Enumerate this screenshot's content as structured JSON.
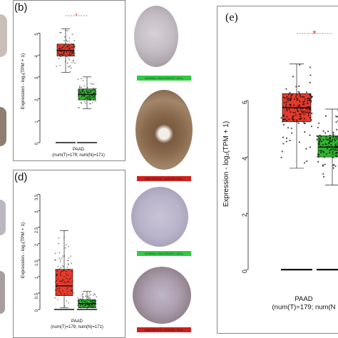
{
  "panels": {
    "b": {
      "label": "(b)"
    },
    "d": {
      "label": "(d)"
    },
    "e": {
      "label": "(e)"
    }
  },
  "tissue_labels": {
    "b_top": "NORMAL PANCREATIC CELL",
    "b_bottom": "PANCREATIC CANCER CELL",
    "d_top": "NORMAL PANCREATIC CELL",
    "d_bottom": "PANCREATIC CANCER CELL"
  },
  "colors": {
    "tumor": "#e53a2c",
    "normal": "#2fb52f",
    "normal_label_bg": "#2ecc40",
    "cancer_label_bg": "#d0201c",
    "significance": "#e8433b"
  },
  "chart_data": [
    {
      "panel": "b",
      "type": "box",
      "ylabel": "Expression - log₂(TPM + 1)",
      "xlabel": "PAAD",
      "xsublabel": "(num(T)=179; num(N)=171)",
      "significance": "*",
      "yticks": [
        0,
        1,
        2,
        3,
        4,
        5
      ],
      "ylim": [
        0,
        5.6
      ],
      "series": [
        {
          "group": "T",
          "q1": 3.95,
          "median": 4.2,
          "q3": 4.5,
          "whisker_low": 3.2,
          "whisker_high": 5.2
        },
        {
          "group": "N",
          "q1": 1.95,
          "median": 2.2,
          "q3": 2.45,
          "whisker_low": 1.55,
          "whisker_high": 3.0
        }
      ]
    },
    {
      "panel": "d",
      "type": "box",
      "ylabel": "Expression - log₂(TPM + 1)",
      "xlabel": "PAAD",
      "xsublabel": "(num(T)=179; num(N)=171)",
      "yticks": [
        0,
        0.5,
        1,
        1.5,
        2,
        2.5,
        3,
        3.5
      ],
      "ticklabels": [
        "0",
        "0.5",
        "1",
        "1.5",
        "2",
        "2.5",
        "3",
        "3.5"
      ],
      "ylim": [
        0,
        3.6
      ],
      "series": [
        {
          "group": "T",
          "q1": 0.42,
          "median": 0.72,
          "q3": 1.22,
          "whisker_low": 0.05,
          "whisker_high": 2.4
        },
        {
          "group": "N",
          "q1": 0.05,
          "median": 0.18,
          "q3": 0.3,
          "whisker_low": 0.0,
          "whisker_high": 0.55
        }
      ]
    },
    {
      "panel": "e",
      "type": "box",
      "ylabel": "Expression - log₂(TPM + 1)",
      "xlabel": "PAAD",
      "xsublabel": "(num(T)=179; num(N",
      "significance": "*",
      "yticks": [
        0,
        2,
        4,
        6
      ],
      "ylim": [
        -0.3,
        7.8
      ],
      "series": [
        {
          "group": "T",
          "q1": 5.25,
          "median": 5.75,
          "q3": 6.25,
          "whisker_low": 3.6,
          "whisker_high": 7.3
        },
        {
          "group": "N",
          "q1": 4.0,
          "median": 4.35,
          "q3": 4.75,
          "whisker_low": 3.0,
          "whisker_high": 5.7
        }
      ]
    }
  ]
}
